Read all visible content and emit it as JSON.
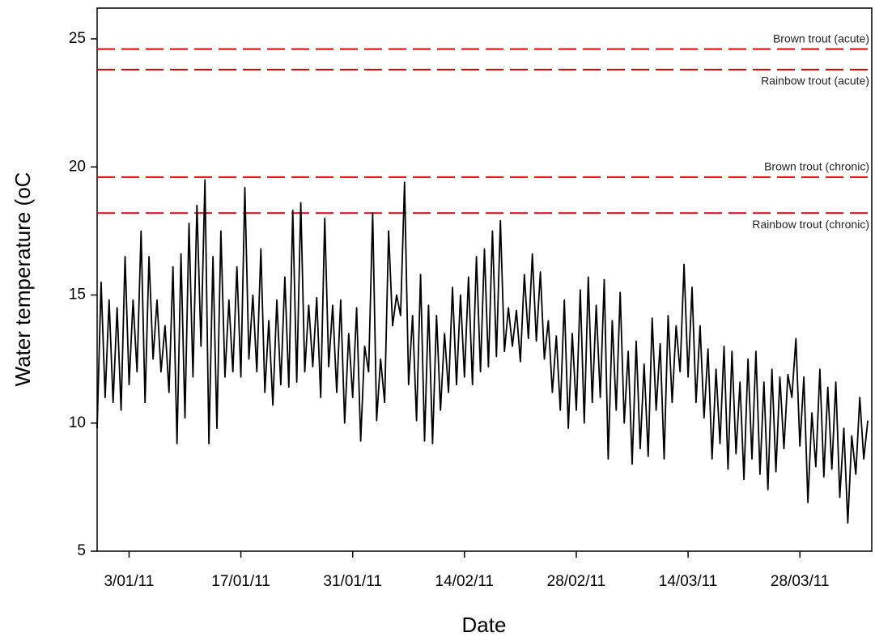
{
  "chart_data": {
    "type": "line",
    "xlabel": "Date",
    "ylabel": "Water temperature (oC",
    "xlim": [
      -1,
      96
    ],
    "ylim": [
      5,
      26.2
    ],
    "yticks": [
      5,
      10,
      15,
      20,
      25
    ],
    "xticks": [
      {
        "value": 3,
        "label": "3/01/11"
      },
      {
        "value": 17,
        "label": "17/01/11"
      },
      {
        "value": 31,
        "label": "31/01/11"
      },
      {
        "value": 45,
        "label": "14/02/11"
      },
      {
        "value": 59,
        "label": "28/02/11"
      },
      {
        "value": 73,
        "label": "14/03/11"
      },
      {
        "value": 87,
        "label": "28/03/11"
      }
    ],
    "color": "#000000",
    "reference_color": "#e00000",
    "reference_lines": [
      {
        "label": "Brown trout (acute)",
        "value": 24.6
      },
      {
        "label": "Rainbow trout (acute)",
        "value": 23.8
      },
      {
        "label": "Brown trout (chronic)",
        "value": 19.6
      },
      {
        "label": "Rainbow trout (chronic)",
        "value": 18.2
      }
    ],
    "x": [
      -1,
      -0.5,
      0,
      0.5,
      1,
      1.5,
      2,
      2.5,
      3,
      3.5,
      4,
      4.5,
      5,
      5.5,
      6,
      6.5,
      7,
      7.5,
      8,
      8.5,
      9,
      9.5,
      10,
      10.5,
      11,
      11.5,
      12,
      12.5,
      13,
      13.5,
      14,
      14.5,
      15,
      15.5,
      16,
      16.5,
      17,
      17.5,
      18,
      18.5,
      19,
      19.5,
      20,
      20.5,
      21,
      21.5,
      22,
      22.5,
      23,
      23.5,
      24,
      24.5,
      25,
      25.5,
      26,
      26.5,
      27,
      27.5,
      28,
      28.5,
      29,
      29.5,
      30,
      30.5,
      31,
      31.5,
      32,
      32.5,
      33,
      33.5,
      34,
      34.5,
      35,
      35.5,
      36,
      36.5,
      37,
      37.5,
      38,
      38.5,
      39,
      39.5,
      40,
      40.5,
      41,
      41.5,
      42,
      42.5,
      43,
      43.5,
      44,
      44.5,
      45,
      45.5,
      46,
      46.5,
      47,
      47.5,
      48,
      48.5,
      49,
      49.5,
      50,
      50.5,
      51,
      51.5,
      52,
      52.5,
      53,
      53.5,
      54,
      54.5,
      55,
      55.5,
      56,
      56.5,
      57,
      57.5,
      58,
      58.5,
      59,
      59.5,
      60,
      60.5,
      61,
      61.5,
      62,
      62.5,
      63,
      63.5,
      64,
      64.5,
      65,
      65.5,
      66,
      66.5,
      67,
      67.5,
      68,
      68.5,
      69,
      69.5,
      70,
      70.5,
      71,
      71.5,
      72,
      72.5,
      73,
      73.5,
      74,
      74.5,
      75,
      75.5,
      76,
      76.5,
      77,
      77.5,
      78,
      78.5,
      79,
      79.5,
      80,
      80.5,
      81,
      81.5,
      82,
      82.5,
      83,
      83.5,
      84,
      84.5,
      85,
      85.5,
      86,
      86.5,
      87,
      87.5,
      88,
      88.5,
      89,
      89.5,
      90,
      90.5,
      91,
      91.5,
      92,
      92.5,
      93,
      93.5,
      94,
      94.5,
      95,
      95.5
    ],
    "values": [
      9.8,
      15.5,
      11.0,
      14.8,
      10.8,
      14.5,
      10.5,
      16.5,
      11.5,
      14.8,
      12.0,
      17.5,
      10.8,
      16.5,
      12.5,
      14.8,
      12.0,
      13.8,
      11.2,
      16.1,
      9.2,
      16.6,
      10.2,
      17.8,
      11.8,
      18.5,
      13.0,
      19.5,
      9.2,
      16.5,
      9.8,
      17.5,
      11.8,
      14.8,
      12.0,
      16.1,
      11.8,
      19.2,
      12.5,
      15.0,
      12.0,
      16.8,
      11.2,
      14.0,
      10.7,
      14.8,
      11.5,
      15.7,
      11.4,
      18.3,
      11.6,
      18.6,
      12.0,
      14.6,
      12.2,
      14.9,
      11.0,
      18.0,
      12.2,
      14.6,
      11.2,
      14.8,
      10.0,
      13.5,
      11.0,
      14.5,
      9.3,
      13.0,
      12.0,
      18.2,
      10.1,
      12.5,
      10.8,
      17.5,
      13.8,
      15.0,
      14.2,
      19.4,
      11.5,
      14.2,
      10.1,
      15.8,
      9.3,
      14.6,
      9.2,
      14.2,
      10.5,
      13.5,
      11.2,
      15.3,
      11.5,
      15.0,
      11.8,
      15.7,
      11.5,
      16.5,
      12.0,
      16.8,
      12.2,
      17.5,
      12.6,
      17.9,
      12.8,
      14.5,
      13.0,
      14.4,
      12.4,
      15.8,
      13.3,
      16.6,
      13.2,
      15.9,
      12.5,
      14.0,
      11.2,
      13.4,
      10.5,
      14.8,
      9.8,
      13.5,
      10.5,
      15.2,
      10.0,
      15.7,
      10.8,
      14.6,
      11.0,
      15.6,
      8.6,
      14.0,
      10.5,
      15.1,
      10.0,
      12.8,
      8.4,
      13.2,
      9.0,
      12.3,
      8.7,
      14.1,
      10.5,
      13.1,
      8.6,
      14.2,
      10.8,
      13.8,
      12.0,
      16.2,
      11.8,
      15.3,
      10.8,
      13.8,
      10.2,
      12.9,
      8.6,
      12.1,
      9.2,
      13.0,
      8.2,
      12.8,
      8.8,
      11.6,
      7.8,
      12.5,
      8.6,
      12.8,
      8.0,
      11.6,
      7.4,
      12.1,
      8.1,
      11.8,
      9.0,
      11.9,
      11.0,
      13.3,
      9.1,
      11.8,
      6.9,
      10.4,
      8.3,
      12.1,
      7.9,
      11.4,
      8.2,
      11.6,
      7.1,
      9.8,
      6.1,
      9.5,
      8.0,
      11.0,
      8.6,
      10.1
    ]
  }
}
